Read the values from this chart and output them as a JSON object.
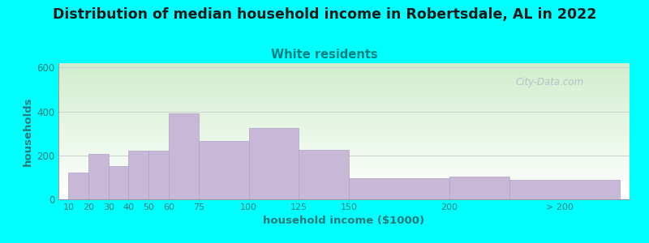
{
  "title": "Distribution of median household income in Robertsdale, AL in 2022",
  "subtitle": "White residents",
  "xlabel": "household income ($1000)",
  "ylabel": "households",
  "background_color": "#00FFFF",
  "plot_bg_gradient_top": "#d0edcc",
  "plot_bg_gradient_bottom": "#ffffff",
  "bar_color": "#c8b8d8",
  "bar_edge_color": "#b0a0c8",
  "title_fontsize": 12.5,
  "title_color": "#1a1a1a",
  "subtitle_fontsize": 10.5,
  "subtitle_color": "#008080",
  "tick_color": "#2a7a7a",
  "label_color": "#2a7a7a",
  "categories": [
    "10",
    "20",
    "30",
    "40",
    "50",
    "60",
    "75",
    "100",
    "125",
    "150",
    "200",
    "> 200"
  ],
  "values": [
    120,
    205,
    150,
    220,
    220,
    390,
    265,
    325,
    225,
    95,
    105,
    90
  ],
  "bar_lefts": [
    10,
    20,
    30,
    40,
    50,
    60,
    75,
    100,
    125,
    150,
    200,
    230
  ],
  "bar_widths": [
    10,
    10,
    10,
    10,
    10,
    15,
    25,
    25,
    25,
    50,
    30,
    55
  ],
  "xtick_positions": [
    10,
    20,
    30,
    40,
    50,
    60,
    75,
    100,
    125,
    150,
    200,
    255
  ],
  "ylim": [
    0,
    620
  ],
  "yticks": [
    0,
    200,
    400,
    600
  ],
  "xlim_left": 5,
  "xlim_right": 290,
  "watermark": "City-Data.com",
  "grid_color": "#d0d0d0"
}
